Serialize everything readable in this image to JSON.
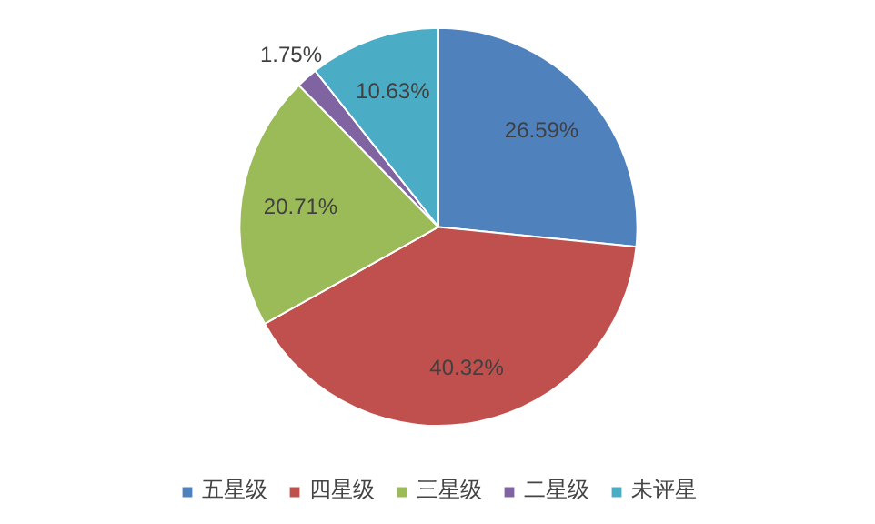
{
  "chart_data": {
    "type": "pie",
    "categories": [
      "五星级",
      "四星级",
      "三星级",
      "二星级",
      "未评星"
    ],
    "values": [
      26.59,
      40.32,
      20.71,
      1.75,
      10.63
    ],
    "colors": [
      "#4f81bd",
      "#c0504d",
      "#9bbb59",
      "#8064a2",
      "#4bacc6"
    ],
    "value_labels": [
      "26.59%",
      "40.32%",
      "20.71%",
      "1.75%",
      "10.63%"
    ],
    "legend": "bottom"
  }
}
